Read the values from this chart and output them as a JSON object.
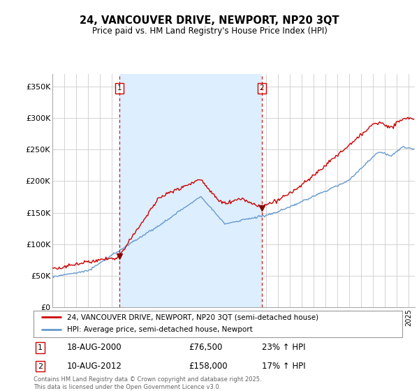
{
  "title": "24, VANCOUVER DRIVE, NEWPORT, NP20 3QT",
  "subtitle": "Price paid vs. HM Land Registry's House Price Index (HPI)",
  "ylabel_ticks": [
    "£0",
    "£50K",
    "£100K",
    "£150K",
    "£200K",
    "£250K",
    "£300K",
    "£350K"
  ],
  "ytick_values": [
    0,
    50000,
    100000,
    150000,
    200000,
    250000,
    300000,
    350000
  ],
  "ylim": [
    0,
    370000
  ],
  "xlim_start": 1995,
  "xlim_end": 2025.5,
  "vline1_x": 2000.62,
  "vline2_x": 2012.61,
  "sale1_price_val": 76500,
  "sale1_hpi_val": 76500,
  "sale2_price_val": 158000,
  "sale2_date": "18-AUG-2000",
  "sale1_price_str": "£76,500",
  "sale1_hpi": "23% ↑ HPI",
  "sale2_date_str": "10-AUG-2012",
  "sale2_price_str": "£158,000",
  "sale2_hpi": "17% ↑ HPI",
  "legend_line1": "24, VANCOUVER DRIVE, NEWPORT, NP20 3QT (semi-detached house)",
  "legend_line2": "HPI: Average price, semi-detached house, Newport",
  "footer": "Contains HM Land Registry data © Crown copyright and database right 2025.\nThis data is licensed under the Open Government Licence v3.0.",
  "line_color_price": "#cc0000",
  "line_color_hpi": "#6699cc",
  "vline_color": "#cc0000",
  "shade_color": "#ddeeff",
  "bg_color": "#ffffff",
  "grid_color": "#cccccc"
}
